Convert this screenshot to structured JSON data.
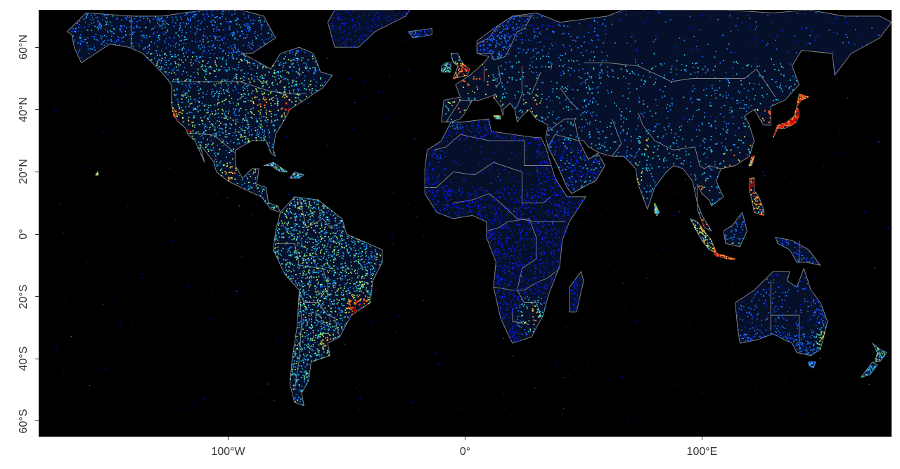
{
  "chart_data": {
    "type": "heatmap",
    "description_units": "degrees longitude / latitude",
    "xlim": [
      -180,
      180
    ],
    "ylim": [
      -65,
      72
    ],
    "x_ticks": [
      {
        "value": -100,
        "label": "100°W"
      },
      {
        "value": 0,
        "label": "0°"
      },
      {
        "value": 100,
        "label": "100°E"
      }
    ],
    "y_ticks": [
      {
        "value": 60,
        "label": "60°N"
      },
      {
        "value": 40,
        "label": "40°N"
      },
      {
        "value": 20,
        "label": "20°N"
      },
      {
        "value": 0,
        "label": "0°"
      },
      {
        "value": -20,
        "label": "20°S"
      },
      {
        "value": -40,
        "label": "40°S"
      },
      {
        "value": -60,
        "label": "60°S"
      }
    ],
    "colorscale": [
      "#0b1cff",
      "#1e7bff",
      "#25d4e6",
      "#b8f56a",
      "#ffd23a",
      "#ff5a14",
      "#d80000"
    ],
    "background": "#000000",
    "border_color": "#8a8a8a",
    "hotspots": [
      {
        "lon": -75,
        "lat": 40.5,
        "v": 0.95
      },
      {
        "lon": -84,
        "lat": 42,
        "v": 0.85
      },
      {
        "lon": -88,
        "lat": 41.8,
        "v": 0.8
      },
      {
        "lon": -122.3,
        "lat": 37.7,
        "v": 0.85
      },
      {
        "lon": -118.2,
        "lat": 34,
        "v": 0.85
      },
      {
        "lon": -99.1,
        "lat": 19.4,
        "v": 0.8
      },
      {
        "lon": -43.2,
        "lat": -22.9,
        "v": 0.9
      },
      {
        "lon": -46.6,
        "lat": -23.5,
        "v": 0.95
      },
      {
        "lon": -58.4,
        "lat": -34.6,
        "v": 0.7
      },
      {
        "lon": -0.1,
        "lat": 51.5,
        "v": 0.95
      },
      {
        "lon": 2.3,
        "lat": 48.8,
        "v": 0.9
      },
      {
        "lon": 6.9,
        "lat": 51,
        "v": 0.85
      },
      {
        "lon": 9.2,
        "lat": 45.5,
        "v": 0.9
      },
      {
        "lon": 12.5,
        "lat": 41.9,
        "v": 0.7
      },
      {
        "lon": -3.7,
        "lat": 40.4,
        "v": 0.75
      },
      {
        "lon": 28.9,
        "lat": 41,
        "v": 0.8
      },
      {
        "lon": 139.7,
        "lat": 35.7,
        "v": 1.0
      },
      {
        "lon": 135.5,
        "lat": 34.7,
        "v": 0.95
      },
      {
        "lon": 126.9,
        "lat": 37.5,
        "v": 0.9
      },
      {
        "lon": 121.5,
        "lat": 31.2,
        "v": 0.85
      },
      {
        "lon": 113.3,
        "lat": 23.1,
        "v": 0.9
      },
      {
        "lon": 121,
        "lat": 14.6,
        "v": 0.95
      },
      {
        "lon": 106.8,
        "lat": -6.2,
        "v": 0.95
      },
      {
        "lon": 112.7,
        "lat": -7.3,
        "v": 0.85
      },
      {
        "lon": 101.7,
        "lat": 3.1,
        "v": 0.85
      },
      {
        "lon": 100.5,
        "lat": 13.7,
        "v": 0.8
      },
      {
        "lon": 77.2,
        "lat": 28.6,
        "v": 0.7
      },
      {
        "lon": 72.8,
        "lat": 19,
        "v": 0.7
      },
      {
        "lon": 28,
        "lat": -26.2,
        "v": 0.8
      },
      {
        "lon": 151.2,
        "lat": -33.9,
        "v": 0.6
      }
    ]
  }
}
